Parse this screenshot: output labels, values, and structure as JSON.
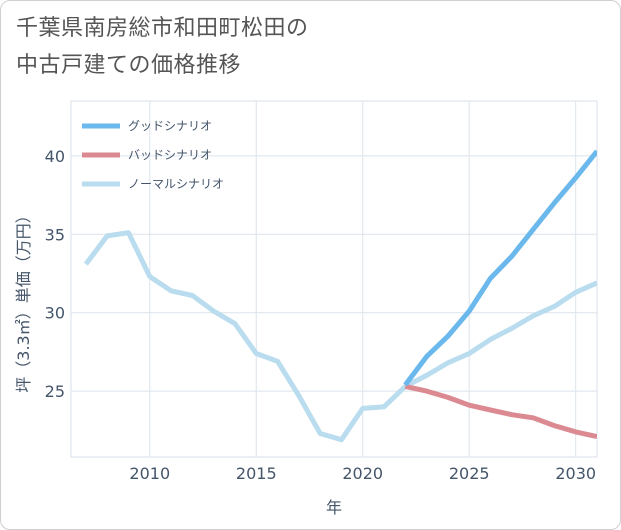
{
  "title_lines": [
    "千葉県南房総市和田町松田の",
    "中古戸建ての価格推移"
  ],
  "chart_data": {
    "type": "line",
    "xlabel": "年",
    "ylabel": "坪（3.3㎡）単価（万円）",
    "xlim": [
      2006.3,
      2031
    ],
    "ylim": [
      20.8,
      43.5
    ],
    "xticks": [
      2010,
      2015,
      2020,
      2025,
      2030
    ],
    "yticks": [
      25,
      30,
      35,
      40
    ],
    "grid": true,
    "legend_position": "top-left",
    "series": [
      {
        "name": "グッドシナリオ",
        "color": "#6bb8ec",
        "x": [
          2022,
          2023,
          2024,
          2025,
          2026,
          2027,
          2028,
          2029,
          2030,
          2031
        ],
        "y": [
          25.4,
          27.2,
          28.5,
          30.1,
          32.2,
          33.6,
          35.3,
          37.0,
          38.6,
          40.3
        ]
      },
      {
        "name": "バッドシナリオ",
        "color": "#dc8a92",
        "x": [
          2022,
          2023,
          2024,
          2025,
          2026,
          2027,
          2028,
          2029,
          2030,
          2031
        ],
        "y": [
          25.3,
          25.0,
          24.6,
          24.1,
          23.8,
          23.5,
          23.3,
          22.8,
          22.4,
          22.1
        ]
      },
      {
        "name": "ノーマルシナリオ",
        "color": "#b9dcee",
        "x": [
          2007,
          2008,
          2009,
          2010,
          2011,
          2012,
          2013,
          2014,
          2015,
          2016,
          2017,
          2018,
          2019,
          2020,
          2021,
          2022,
          2023,
          2024,
          2025,
          2026,
          2027,
          2028,
          2029,
          2030,
          2031
        ],
        "y": [
          33.1,
          34.9,
          35.1,
          32.3,
          31.4,
          31.1,
          30.1,
          29.3,
          27.4,
          26.9,
          24.7,
          22.3,
          21.9,
          23.9,
          24.0,
          25.3,
          26.0,
          26.8,
          27.4,
          28.3,
          29.0,
          29.8,
          30.4,
          31.3,
          31.9
        ]
      }
    ]
  }
}
